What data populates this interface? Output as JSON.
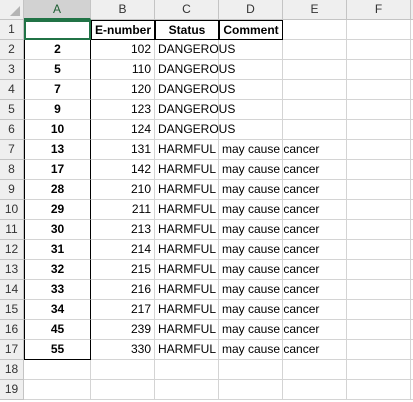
{
  "columns": [
    "A",
    "B",
    "C",
    "D",
    "E",
    "F"
  ],
  "row_numbers": [
    "1",
    "2",
    "3",
    "4",
    "5",
    "6",
    "7",
    "8",
    "9",
    "10",
    "11",
    "12",
    "13",
    "14",
    "15",
    "16",
    "17",
    "18",
    "19"
  ],
  "headers": {
    "a": "",
    "b": "E-number",
    "c": "Status",
    "d": "Comment"
  },
  "rows": [
    {
      "a": "2",
      "b": "102",
      "c": "DANGEROUS",
      "d": ""
    },
    {
      "a": "5",
      "b": "110",
      "c": "DANGEROUS",
      "d": ""
    },
    {
      "a": "7",
      "b": "120",
      "c": "DANGEROUS",
      "d": ""
    },
    {
      "a": "9",
      "b": "123",
      "c": "DANGEROUS",
      "d": ""
    },
    {
      "a": "10",
      "b": "124",
      "c": "DANGEROUS",
      "d": ""
    },
    {
      "a": "13",
      "b": "131",
      "c": "HARMFUL",
      "d": "may cause cancer"
    },
    {
      "a": "17",
      "b": "142",
      "c": "HARMFUL",
      "d": "may cause cancer"
    },
    {
      "a": "28",
      "b": "210",
      "c": "HARMFUL",
      "d": "may cause cancer"
    },
    {
      "a": "29",
      "b": "211",
      "c": "HARMFUL",
      "d": "may cause cancer"
    },
    {
      "a": "30",
      "b": "213",
      "c": "HARMFUL",
      "d": "may cause cancer"
    },
    {
      "a": "31",
      "b": "214",
      "c": "HARMFUL",
      "d": "may cause cancer"
    },
    {
      "a": "32",
      "b": "215",
      "c": "HARMFUL",
      "d": "may cause cancer"
    },
    {
      "a": "33",
      "b": "216",
      "c": "HARMFUL",
      "d": "may cause cancer"
    },
    {
      "a": "34",
      "b": "217",
      "c": "HARMFUL",
      "d": "may cause cancer"
    },
    {
      "a": "45",
      "b": "239",
      "c": "HARMFUL",
      "d": "may cause cancer"
    },
    {
      "a": "55",
      "b": "330",
      "c": "HARMFUL",
      "d": "may cause cancer"
    }
  ],
  "colors": {
    "selection": "#217346",
    "header_bg": "#efefef"
  }
}
